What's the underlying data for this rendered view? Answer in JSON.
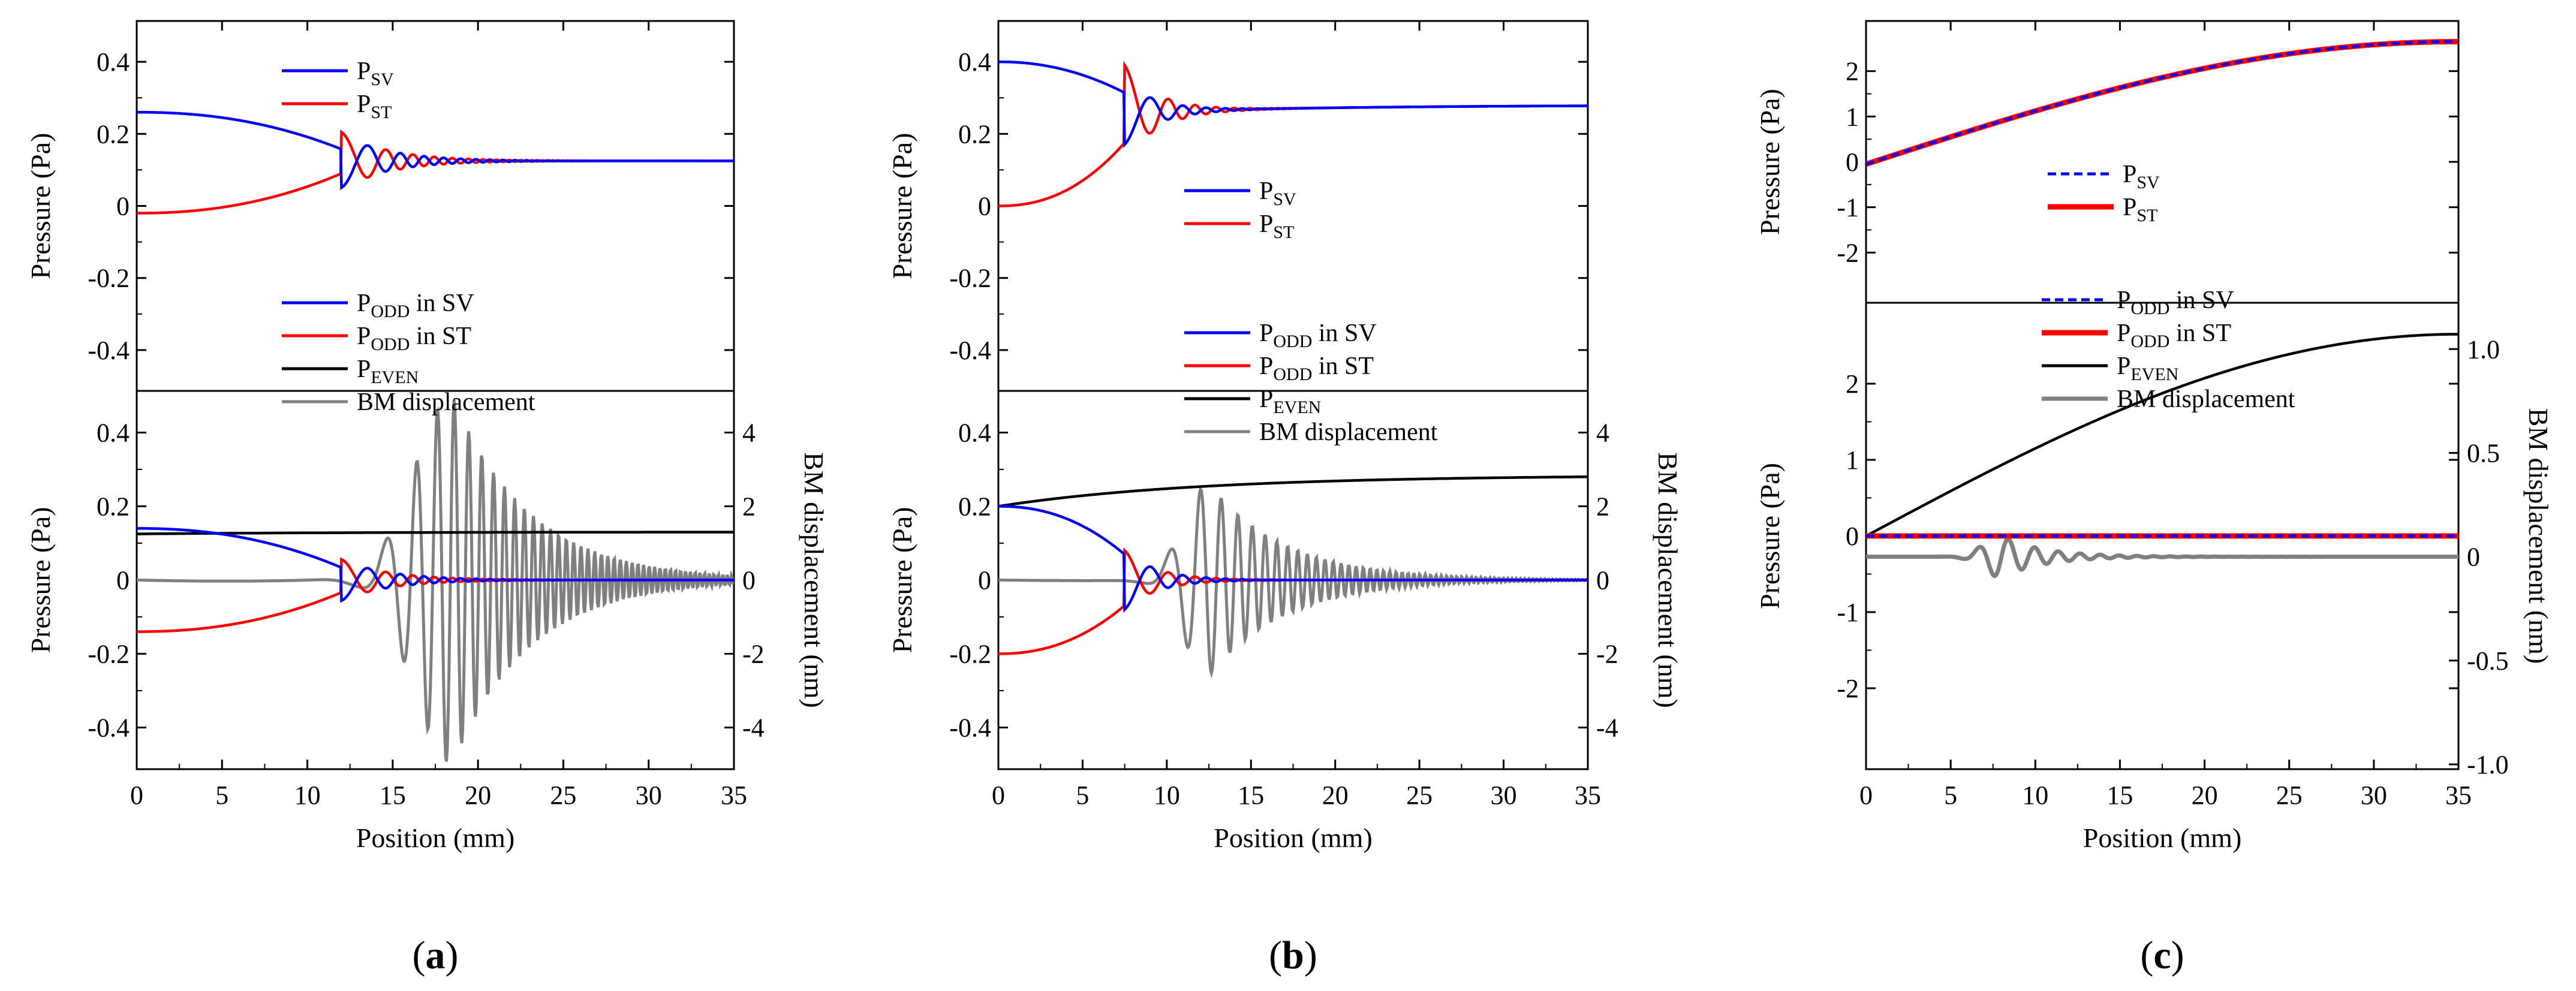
{
  "panels": [
    {
      "id": "a",
      "label": "(a)",
      "xlim": [
        0,
        35
      ],
      "xticks": [
        "0",
        "5",
        "10",
        "15",
        "20",
        "25",
        "30",
        "35"
      ],
      "xlabel": "Position (mm)",
      "top": {
        "ylabel": "Pressure (Pa)",
        "ylim": [
          -0.5,
          0.5
        ],
        "yticks": [
          "0.4",
          "0.2",
          "0",
          "-0.2",
          "-0.4"
        ],
        "legend": [
          {
            "main": "P",
            "sub": "SV",
            "color": "#0000ff",
            "style": "solid"
          },
          {
            "main": "P",
            "sub": "ST",
            "color": "#ff0000",
            "style": "solid"
          }
        ]
      },
      "bottom": {
        "ylabel": "Pressure (Pa)",
        "ylim": [
          -0.5,
          0.5
        ],
        "yticks": [
          "0.4",
          "0.2",
          "0",
          "-0.2",
          "-0.4"
        ],
        "y2label": "BM displacement (nm)",
        "y2lim": [
          -5,
          5
        ],
        "y2ticks": [
          "4",
          "2",
          "0",
          "-2",
          "-4"
        ],
        "legend": [
          {
            "main": "P",
            "sub": "ODD",
            "tail": " in SV",
            "color": "#0000ff",
            "style": "solid"
          },
          {
            "main": "P",
            "sub": "ODD",
            "tail": " in ST",
            "color": "#ff0000",
            "style": "solid"
          },
          {
            "main": "P",
            "sub": "EVEN",
            "tail": "",
            "color": "#000000",
            "style": "solid"
          },
          {
            "main": "BM displacement",
            "sub": "",
            "tail": "",
            "color": "#808080",
            "style": "solid"
          }
        ]
      }
    },
    {
      "id": "b",
      "label": "(b)",
      "xlim": [
        0,
        35
      ],
      "xticks": [
        "0",
        "5",
        "10",
        "15",
        "20",
        "25",
        "30",
        "35"
      ],
      "xlabel": "Position (mm)",
      "top": {
        "ylabel": "Pressure (Pa)",
        "ylim": [
          -0.5,
          0.5
        ],
        "yticks": [
          "0.4",
          "0.2",
          "0",
          "-0.2",
          "-0.4"
        ],
        "legend": [
          {
            "main": "P",
            "sub": "SV",
            "color": "#0000ff",
            "style": "solid"
          },
          {
            "main": "P",
            "sub": "ST",
            "color": "#ff0000",
            "style": "solid"
          }
        ]
      },
      "bottom": {
        "ylabel": "Pressure (Pa)",
        "ylim": [
          -0.5,
          0.5
        ],
        "yticks": [
          "0.4",
          "0.2",
          "0",
          "-0.2",
          "-0.4"
        ],
        "y2label": "BM displacement (nm)",
        "y2lim": [
          -5,
          5
        ],
        "y2ticks": [
          "4",
          "2",
          "0",
          "-2",
          "-4"
        ],
        "legend": [
          {
            "main": "P",
            "sub": "ODD",
            "tail": " in SV",
            "color": "#0000ff",
            "style": "solid"
          },
          {
            "main": "P",
            "sub": "ODD",
            "tail": " in ST",
            "color": "#ff0000",
            "style": "solid"
          },
          {
            "main": "P",
            "sub": "EVEN",
            "tail": "",
            "color": "#000000",
            "style": "solid"
          },
          {
            "main": "BM displacement",
            "sub": "",
            "tail": "",
            "color": "#808080",
            "style": "solid"
          }
        ]
      }
    },
    {
      "id": "c",
      "label": "(c)",
      "xlim": [
        0,
        35
      ],
      "xticks": [
        "0",
        "5",
        "10",
        "15",
        "20",
        "25",
        "30",
        "35"
      ],
      "xlabel": "Position (mm)",
      "top": {
        "ylabel": "Pressure (Pa)",
        "ylim": [
          -3,
          3
        ],
        "yticks": [
          "2",
          "1",
          "0",
          "-1",
          "-2"
        ],
        "legend": [
          {
            "main": "P",
            "sub": "SV",
            "color": "#0000ff",
            "style": "dash"
          },
          {
            "main": "P",
            "sub": "ST",
            "color": "#ff0000",
            "style": "thick"
          }
        ]
      },
      "bottom": {
        "ylabel": "Pressure (Pa)",
        "ylim": [
          -3,
          3
        ],
        "yticks": [
          "2",
          "1",
          "0",
          "-1",
          "-2"
        ],
        "y2label": "BM displacement (nm)",
        "y2lim": [
          -1,
          1.2
        ],
        "y2ticks": [
          "1.0",
          "0.5",
          "0",
          "-0.5",
          "-1.0"
        ],
        "legend": [
          {
            "main": "P",
            "sub": "ODD",
            "tail": " in SV",
            "color": "#0000ff",
            "style": "dash"
          },
          {
            "main": "P",
            "sub": "ODD",
            "tail": " in ST",
            "color": "#ff0000",
            "style": "thick"
          },
          {
            "main": "P",
            "sub": "EVEN",
            "tail": "",
            "color": "#000000",
            "style": "solid"
          },
          {
            "main": "BM displacement",
            "sub": "",
            "tail": "",
            "color": "#808080",
            "style": "thickgray"
          }
        ]
      }
    }
  ],
  "chart_data": [
    {
      "type": "line",
      "title": "(a)",
      "xlabel": "Position (mm)",
      "ylabel": "Pressure (Pa)",
      "xlim": [
        0,
        35
      ],
      "ylim_top": [
        -0.5,
        0.5
      ],
      "ylim_bottom": [
        -0.5,
        0.5
      ],
      "y2lim_bottom": [
        -5,
        5
      ],
      "y2label": "BM displacement (nm)",
      "params": {
        "base_top": 0.125,
        "base_even": 0.13,
        "even_start": 0.125,
        "sv_start": 0.26,
        "st_start": -0.02,
        "odd_amp": 0.14,
        "x_cross": 12,
        "x_end": 20,
        "bm_peak_x": 18.5,
        "bm_amp": 5,
        "bm_offset": 0
      },
      "series": [
        {
          "name": "P_SV",
          "panel": "top",
          "color": "#0000ff"
        },
        {
          "name": "P_ST",
          "panel": "top",
          "color": "#ff0000"
        },
        {
          "name": "P_ODD in SV",
          "panel": "bottom",
          "color": "#0000ff"
        },
        {
          "name": "P_ODD in ST",
          "panel": "bottom",
          "color": "#ff0000"
        },
        {
          "name": "P_EVEN",
          "panel": "bottom",
          "color": "#000000"
        },
        {
          "name": "BM displacement",
          "panel": "bottom",
          "axis": "y2",
          "color": "#808080"
        }
      ]
    },
    {
      "type": "line",
      "title": "(b)",
      "xlabel": "Position (mm)",
      "ylabel": "Pressure (Pa)",
      "xlim": [
        0,
        35
      ],
      "ylim_top": [
        -0.5,
        0.5
      ],
      "ylim_bottom": [
        -0.5,
        0.5
      ],
      "y2lim_bottom": [
        -5,
        5
      ],
      "y2label": "BM displacement (nm)",
      "params": {
        "base_top": 0.24,
        "top_end": 0.28,
        "even_start": 0.2,
        "base_even": 0.28,
        "sv_start": 0.4,
        "st_start": 0.0,
        "odd_amp": 0.2,
        "x_cross": 7.5,
        "x_end": 13,
        "bm_peak_x": 12.5,
        "bm_amp": 2.6,
        "bm_offset": 0
      },
      "series": [
        {
          "name": "P_SV",
          "panel": "top",
          "color": "#0000ff"
        },
        {
          "name": "P_ST",
          "panel": "top",
          "color": "#ff0000"
        },
        {
          "name": "P_ODD in SV",
          "panel": "bottom",
          "color": "#0000ff"
        },
        {
          "name": "P_ODD in ST",
          "panel": "bottom",
          "color": "#ff0000"
        },
        {
          "name": "P_EVEN",
          "panel": "bottom",
          "color": "#000000"
        },
        {
          "name": "BM displacement",
          "panel": "bottom",
          "axis": "y2",
          "color": "#808080"
        }
      ]
    },
    {
      "type": "line",
      "title": "(c)",
      "xlabel": "Position (mm)",
      "ylabel": "Pressure (Pa)",
      "xlim": [
        0,
        35
      ],
      "ylim_top": [
        -3,
        3
      ],
      "ylim_bottom": [
        -3,
        3
      ],
      "y2lim_bottom": [
        -1,
        1.2
      ],
      "y2label": "BM displacement (nm)",
      "params": {
        "top_start": -0.05,
        "top_end": 2.65,
        "even_start": 0,
        "even_end": 2.65,
        "odd_amp": 0.0,
        "bm_peak_x": 8,
        "bm_amp": 0.1
      },
      "series": [
        {
          "name": "P_SV",
          "panel": "top",
          "color": "#0000ff",
          "style": "dash"
        },
        {
          "name": "P_ST",
          "panel": "top",
          "color": "#ff0000"
        },
        {
          "name": "P_ODD in SV",
          "panel": "bottom",
          "color": "#0000ff",
          "style": "dash"
        },
        {
          "name": "P_ODD in ST",
          "panel": "bottom",
          "color": "#ff0000"
        },
        {
          "name": "P_EVEN",
          "panel": "bottom",
          "color": "#000000"
        },
        {
          "name": "BM displacement",
          "panel": "bottom",
          "axis": "y2",
          "color": "#808080"
        }
      ]
    }
  ]
}
